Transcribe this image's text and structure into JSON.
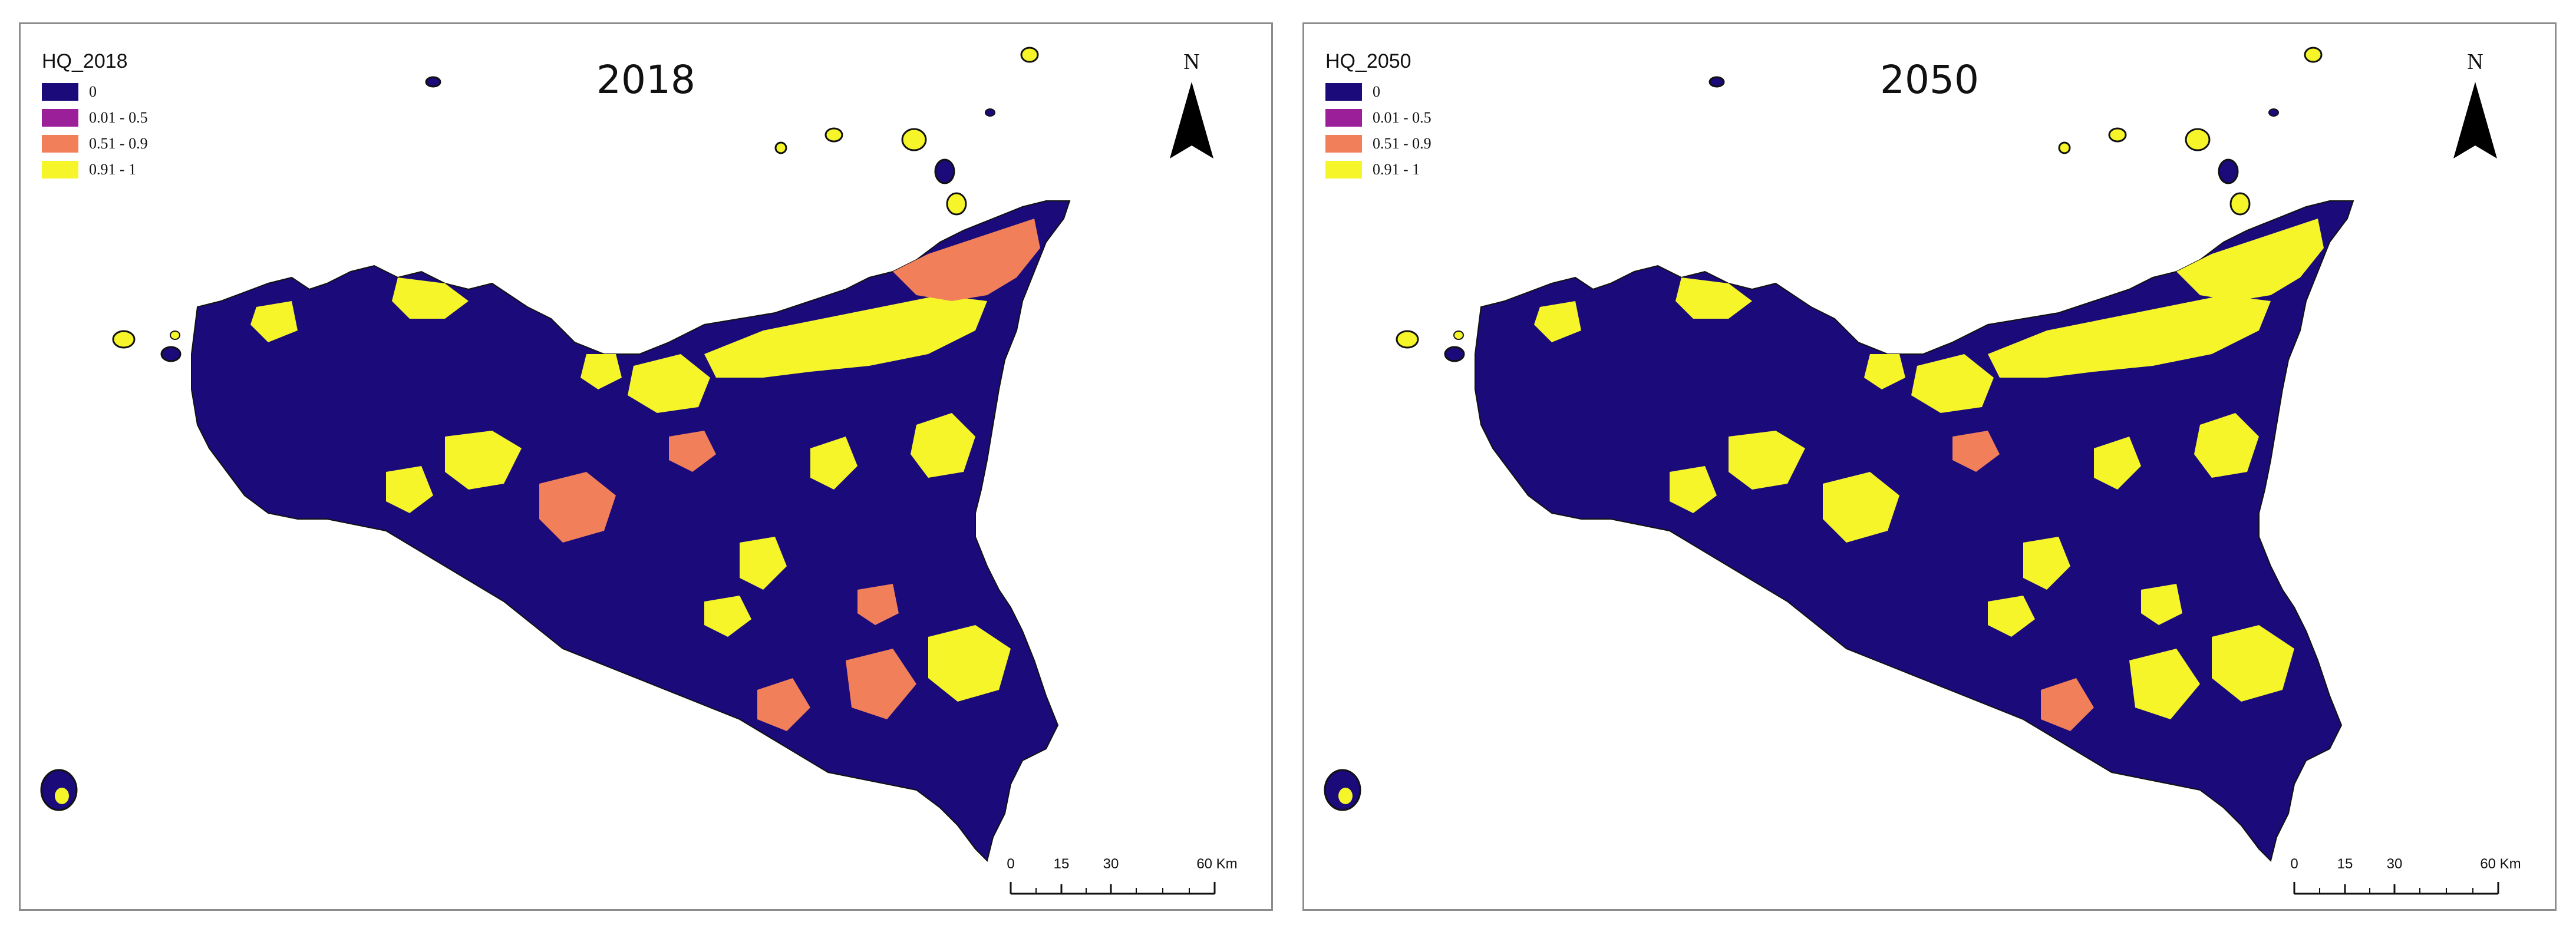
{
  "panels": [
    {
      "title": "2018",
      "legend": {
        "title": "HQ_2018",
        "items": [
          {
            "label": "0",
            "color": "#1a0a7a"
          },
          {
            "label": "0.01 - 0.5",
            "color": "#9c1f9a"
          },
          {
            "label": "0.51 - 0.9",
            "color": "#f07f5a"
          },
          {
            "label": "0.91 - 1",
            "color": "#f5f52a"
          }
        ]
      },
      "north": "N",
      "scale": {
        "ticks": [
          "0",
          "15",
          "30",
          "60 Km"
        ]
      }
    },
    {
      "title": "2050",
      "legend": {
        "title": "HQ_2050",
        "items": [
          {
            "label": "0",
            "color": "#1a0a7a"
          },
          {
            "label": "0.01 - 0.5",
            "color": "#9c1f9a"
          },
          {
            "label": "0.51 - 0.9",
            "color": "#f07f5a"
          },
          {
            "label": "0.91 - 1",
            "color": "#f5f52a"
          }
        ]
      },
      "north": "N",
      "scale": {
        "ticks": [
          "0",
          "15",
          "30",
          "60 Km"
        ]
      }
    }
  ],
  "colors": {
    "low": "#1a0a7a",
    "mid_low": "#9c1f9a",
    "mid_high": "#f07f5a",
    "high": "#f5f52a"
  }
}
